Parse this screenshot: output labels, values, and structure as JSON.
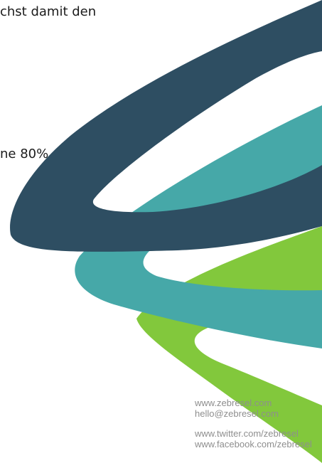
{
  "text": {
    "line1": "chst damit den",
    "line2": "ne 80%"
  },
  "colors": {
    "dark_slate": "#2e4e62",
    "teal": "#46a8a8",
    "green": "#82c83c",
    "text": "#1b1b1b",
    "footer_text": "#8e8e8e"
  },
  "contact": {
    "website": "www.zebresel.com",
    "email": "hello@zebresel.com",
    "twitter": "www.twitter.com/zebresel",
    "facebook": "www.facebook.com/zebresel"
  }
}
